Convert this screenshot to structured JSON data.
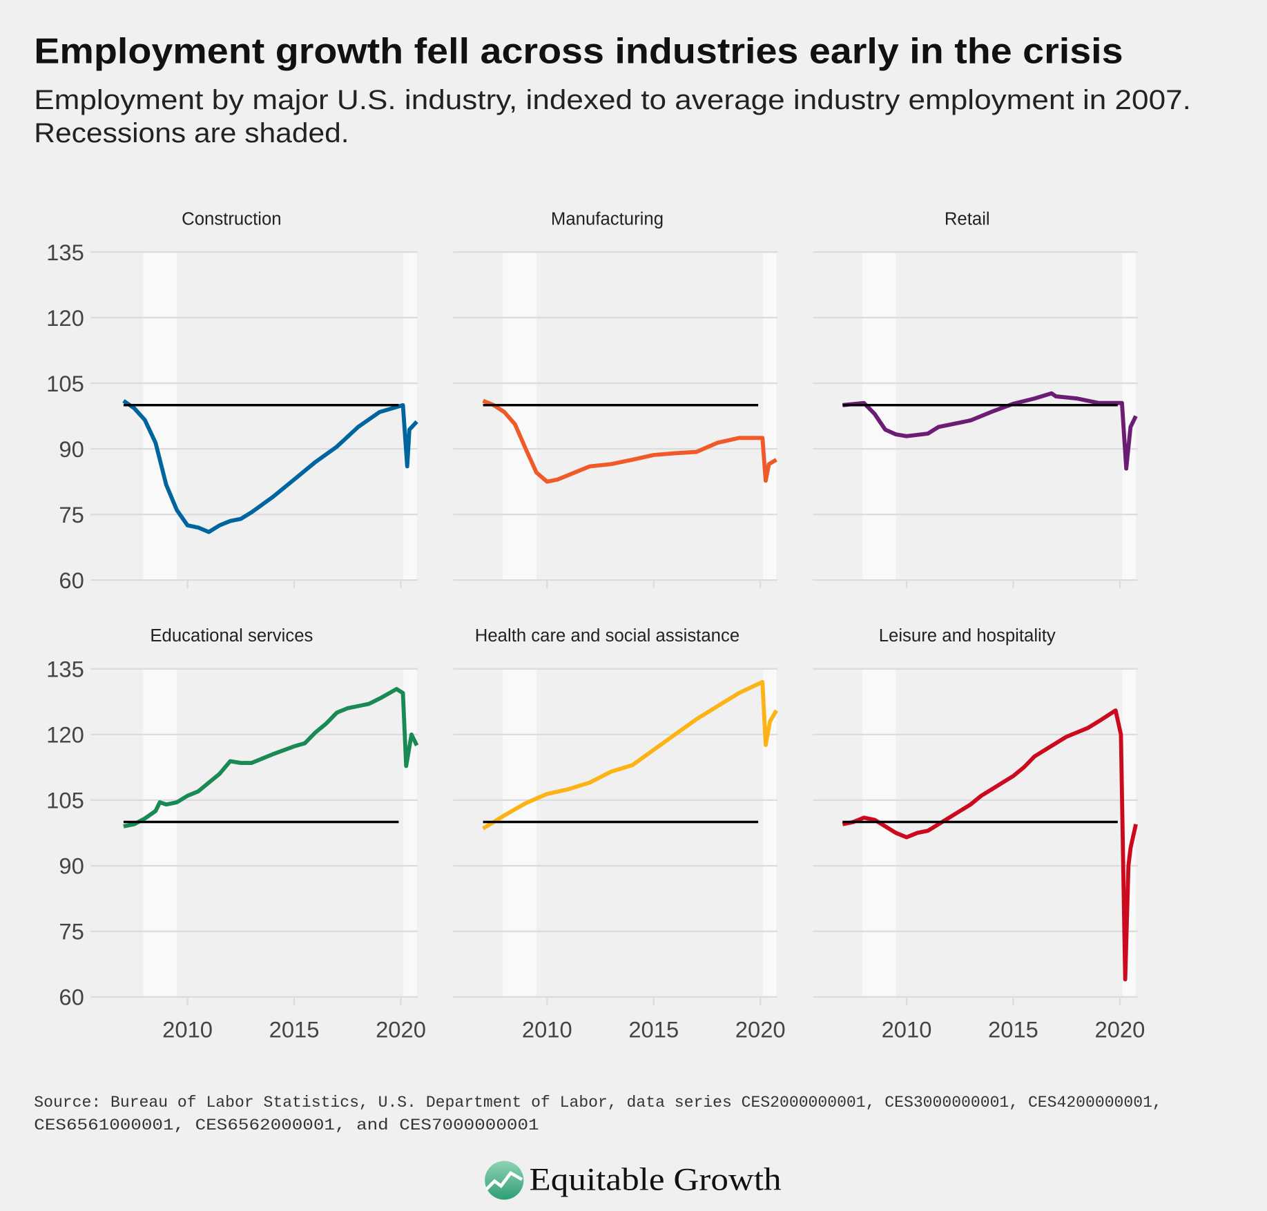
{
  "title": "Employment growth fell across industries early in the crisis",
  "subtitle_line1": "Employment by major U.S. industry, indexed to average industry employment in 2007.",
  "subtitle_line2": "Recessions are shaded.",
  "source_line1": "Source: Bureau of Labor Statistics, U.S. Department of Labor, data series CES2000000001, CES3000000001, CES4200000001,",
  "source_line2": "CES6561000001, CES6562000001, and CES7000000001",
  "logo_text": "Equitable Growth",
  "colors": {
    "background": "#f0f0f0",
    "recession": "#f9f9f9",
    "grid": "#dcdcdc",
    "reference": "#000000"
  },
  "chart_data": {
    "type": "line",
    "layout": "small-multiples 3x2",
    "ylim": [
      60,
      135
    ],
    "yticks": [
      "60",
      "75",
      "90",
      "105",
      "120",
      "135"
    ],
    "xticks": [
      "2010",
      "2015",
      "2020"
    ],
    "xlim": [
      2007,
      2020.75
    ],
    "reference_line": 100,
    "recessions": [
      [
        2007.92,
        2009.5
      ],
      [
        2020.12,
        2020.75
      ]
    ],
    "grid": true,
    "panels": [
      {
        "title": "Construction",
        "color": "#00659f",
        "x": [
          2007,
          2007.5,
          2008,
          2008.5,
          2009,
          2009.5,
          2010,
          2010.5,
          2011,
          2011.5,
          2012,
          2012.5,
          2013,
          2014,
          2015,
          2016,
          2017,
          2018,
          2019,
          2020.1,
          2020.3,
          2020.4,
          2020.75
        ],
        "y": [
          101,
          99.3,
          96.6,
          91.4,
          81.8,
          76,
          72.5,
          72,
          71,
          72.5,
          73.5,
          74,
          75.5,
          79,
          83,
          87,
          90.5,
          95,
          98.4,
          100,
          86,
          94.4,
          96.2
        ]
      },
      {
        "title": "Manufacturing",
        "color": "#f05a28",
        "x": [
          2007,
          2007.5,
          2008,
          2008.5,
          2009,
          2009.5,
          2010,
          2010.5,
          2011,
          2011.5,
          2012,
          2013,
          2014,
          2015,
          2016,
          2017,
          2018,
          2019,
          2020.1,
          2020.25,
          2020.4,
          2020.75
        ],
        "y": [
          101,
          100,
          98.4,
          95.6,
          90,
          84.6,
          82.5,
          83,
          84,
          85,
          86,
          86.5,
          87.5,
          88.6,
          89,
          89.3,
          91.4,
          92.5,
          92.5,
          82.7,
          86.5,
          87.5
        ]
      },
      {
        "title": "Retail",
        "color": "#6b1d73",
        "x": [
          2007,
          2008,
          2008.5,
          2009,
          2009.5,
          2010,
          2011,
          2011.5,
          2012,
          2013,
          2014,
          2015,
          2016,
          2016.8,
          2017,
          2018,
          2019,
          2020.1,
          2020.3,
          2020.5,
          2020.75
        ],
        "y": [
          100,
          100.5,
          98,
          94.4,
          93.3,
          92.9,
          93.5,
          95,
          95.5,
          96.5,
          98.5,
          100.3,
          101.5,
          102.7,
          102,
          101.5,
          100.5,
          100.5,
          85.5,
          95,
          97.5
        ]
      },
      {
        "title": "Educational services",
        "color": "#1a8a55",
        "x": [
          2007,
          2007.5,
          2008,
          2008.5,
          2008.7,
          2009,
          2009.5,
          2010,
          2010.5,
          2011,
          2011.5,
          2012,
          2012.5,
          2013,
          2013.5,
          2014,
          2015,
          2015.5,
          2016,
          2016.5,
          2017,
          2017.5,
          2018,
          2018.5,
          2019,
          2019.8,
          2020.1,
          2020.25,
          2020.5,
          2020.75
        ],
        "y": [
          99,
          99.5,
          100.8,
          102.5,
          104.5,
          104,
          104.5,
          106,
          107,
          109,
          111,
          113.9,
          113.5,
          113.5,
          114.5,
          115.5,
          117.3,
          118,
          120.5,
          122.5,
          125,
          126,
          126.5,
          127,
          128.2,
          130.4,
          129.5,
          112.8,
          120,
          117.5
        ]
      },
      {
        "title": "Health care and social assistance",
        "color": "#fbb316",
        "x": [
          2007,
          2008,
          2009,
          2010,
          2011,
          2012,
          2013,
          2014,
          2015,
          2016,
          2017,
          2018,
          2019,
          2020.1,
          2020.25,
          2020.45,
          2020.75
        ],
        "y": [
          98.5,
          101.5,
          104.3,
          106.4,
          107.5,
          109,
          111.5,
          113,
          116.5,
          120,
          123.5,
          126.5,
          129.5,
          132,
          117.6,
          123,
          125.5
        ]
      },
      {
        "title": "Leisure and hospitality",
        "color": "#cc0a1e",
        "x": [
          2007,
          2007.5,
          2008,
          2008.5,
          2009,
          2009.5,
          2010,
          2010.5,
          2011,
          2011.5,
          2012,
          2012.5,
          2013,
          2013.5,
          2014,
          2014.5,
          2015,
          2015.5,
          2016,
          2016.5,
          2017,
          2017.5,
          2018,
          2018.5,
          2019,
          2019.8,
          2020.05,
          2020.25,
          2020.4,
          2020.5,
          2020.75
        ],
        "y": [
          99.5,
          100,
          101,
          100.5,
          99,
          97.5,
          96.5,
          97.5,
          98,
          99.5,
          101,
          102.5,
          104,
          106,
          107.5,
          109,
          110.5,
          112.5,
          115,
          116.5,
          118,
          119.5,
          120.5,
          121.5,
          123,
          125.5,
          120,
          64,
          90,
          94,
          99.5
        ]
      }
    ]
  }
}
